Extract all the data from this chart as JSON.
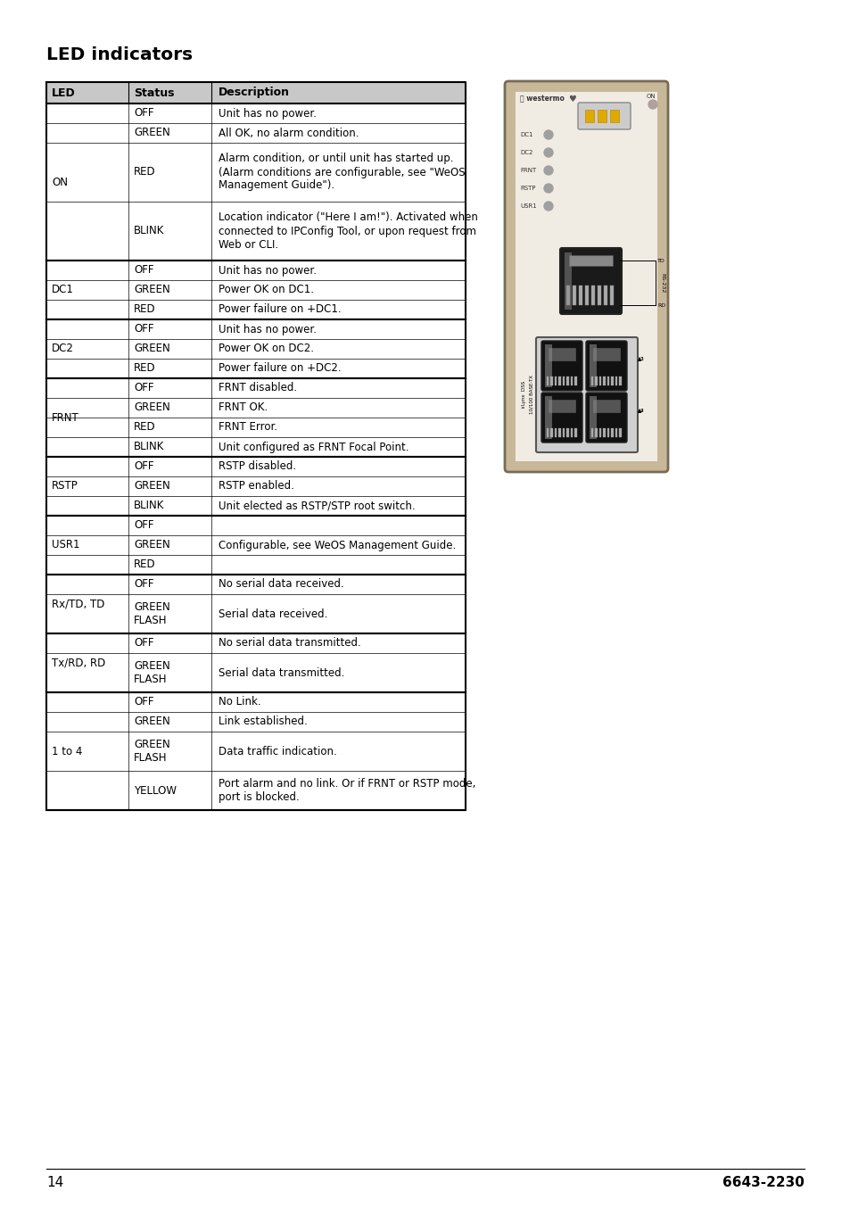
{
  "title": "LED indicators",
  "page_num": "14",
  "doc_num": "6643-2230",
  "bg_color": "#ffffff",
  "header_bg": "#c8c8c8",
  "rows": [
    {
      "led": "ON",
      "status": "OFF",
      "desc": "Unit has no power.",
      "group_start": true,
      "group_rows": 4,
      "row_lines": 1
    },
    {
      "led": "",
      "status": "GREEN",
      "desc": "All OK, no alarm condition.",
      "group_start": false,
      "group_rows": 0,
      "row_lines": 1
    },
    {
      "led": "",
      "status": "RED",
      "desc": "Alarm condition, or until unit has started up.\n(Alarm conditions are configurable, see \"WeOS\nManagement Guide\").",
      "group_start": false,
      "group_rows": 0,
      "row_lines": 3
    },
    {
      "led": "",
      "status": "BLINK",
      "desc": "Location indicator (\"Here I am!\"). Activated when\nconnected to IPConfig Tool, or upon request from\nWeb or CLI.",
      "group_start": false,
      "group_rows": 0,
      "row_lines": 3
    },
    {
      "led": "DC1",
      "status": "OFF",
      "desc": "Unit has no power.",
      "group_start": true,
      "group_rows": 3,
      "row_lines": 1
    },
    {
      "led": "",
      "status": "GREEN",
      "desc": "Power OK on DC1.",
      "group_start": false,
      "group_rows": 0,
      "row_lines": 1
    },
    {
      "led": "",
      "status": "RED",
      "desc": "Power failure on +DC1.",
      "group_start": false,
      "group_rows": 0,
      "row_lines": 1
    },
    {
      "led": "DC2",
      "status": "OFF",
      "desc": "Unit has no power.",
      "group_start": true,
      "group_rows": 3,
      "row_lines": 1
    },
    {
      "led": "",
      "status": "GREEN",
      "desc": "Power OK on DC2.",
      "group_start": false,
      "group_rows": 0,
      "row_lines": 1
    },
    {
      "led": "",
      "status": "RED",
      "desc": "Power failure on +DC2.",
      "group_start": false,
      "group_rows": 0,
      "row_lines": 1
    },
    {
      "led": "FRNT",
      "status": "OFF",
      "desc": "FRNT disabled.",
      "group_start": true,
      "group_rows": 4,
      "row_lines": 1
    },
    {
      "led": "",
      "status": "GREEN",
      "desc": "FRNT OK.",
      "group_start": false,
      "group_rows": 0,
      "row_lines": 1
    },
    {
      "led": "",
      "status": "RED",
      "desc": "FRNT Error.",
      "group_start": false,
      "group_rows": 0,
      "row_lines": 1
    },
    {
      "led": "",
      "status": "BLINK",
      "desc": "Unit configured as FRNT Focal Point.",
      "group_start": false,
      "group_rows": 0,
      "row_lines": 1
    },
    {
      "led": "RSTP",
      "status": "OFF",
      "desc": "RSTP disabled.",
      "group_start": true,
      "group_rows": 3,
      "row_lines": 1
    },
    {
      "led": "",
      "status": "GREEN",
      "desc": "RSTP enabled.",
      "group_start": false,
      "group_rows": 0,
      "row_lines": 1
    },
    {
      "led": "",
      "status": "BLINK",
      "desc": "Unit elected as RSTP/STP root switch.",
      "group_start": false,
      "group_rows": 0,
      "row_lines": 1
    },
    {
      "led": "USR1",
      "status": "OFF",
      "desc": "",
      "group_start": true,
      "group_rows": 3,
      "row_lines": 1
    },
    {
      "led": "",
      "status": "GREEN",
      "desc": "Configurable, see WeOS Management Guide.",
      "group_start": false,
      "group_rows": 0,
      "row_lines": 1
    },
    {
      "led": "",
      "status": "RED",
      "desc": "",
      "group_start": false,
      "group_rows": 0,
      "row_lines": 1
    },
    {
      "led": "Rx/TD, TD",
      "status": "OFF",
      "desc": "No serial data received.",
      "group_start": true,
      "group_rows": 2,
      "row_lines": 1
    },
    {
      "led": "",
      "status": "GREEN\nFLASH",
      "desc": "Serial data received.",
      "group_start": false,
      "group_rows": 0,
      "row_lines": 2
    },
    {
      "led": "Tx/RD, RD",
      "status": "OFF",
      "desc": "No serial data transmitted.",
      "group_start": true,
      "group_rows": 2,
      "row_lines": 1
    },
    {
      "led": "",
      "status": "GREEN\nFLASH",
      "desc": "Serial data transmitted.",
      "group_start": false,
      "group_rows": 0,
      "row_lines": 2
    },
    {
      "led": "1 to 4",
      "status": "OFF",
      "desc": "No Link.",
      "group_start": true,
      "group_rows": 4,
      "row_lines": 1
    },
    {
      "led": "",
      "status": "GREEN",
      "desc": "Link established.",
      "group_start": false,
      "group_rows": 0,
      "row_lines": 1
    },
    {
      "led": "",
      "status": "GREEN\nFLASH",
      "desc": "Data traffic indication.",
      "group_start": false,
      "group_rows": 0,
      "row_lines": 2
    },
    {
      "led": "",
      "status": "YELLOW",
      "desc": "Port alarm and no link. Or if FRNT or RSTP mode,\nport is blocked.",
      "group_start": false,
      "group_rows": 0,
      "row_lines": 2
    }
  ]
}
